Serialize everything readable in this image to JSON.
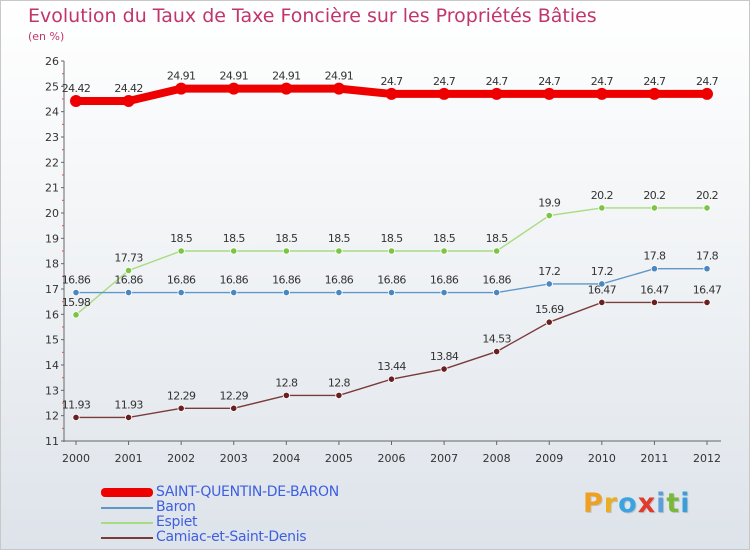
{
  "title": "Evolution du Taux de Taxe Foncière sur les Propriétés Bâties",
  "unit_label": "(en %)",
  "logo": {
    "text": "Proxiti",
    "letters": [
      {
        "ch": "P",
        "color": "#f0a020"
      },
      {
        "ch": "r",
        "color": "#e8b020"
      },
      {
        "ch": "o",
        "color": "#3ba3e0"
      },
      {
        "ch": "x",
        "color": "#e03a2a"
      },
      {
        "ch": "i",
        "color": "#5a9fd8"
      },
      {
        "ch": "t",
        "color": "#7ab83a"
      },
      {
        "ch": "i",
        "color": "#3a9fd8"
      }
    ]
  },
  "chart_data": {
    "type": "line",
    "x": [
      "2000",
      "2001",
      "2002",
      "2003",
      "2004",
      "2005",
      "2006",
      "2007",
      "2008",
      "2009",
      "2010",
      "2011",
      "2012"
    ],
    "ylim": [
      11,
      26
    ],
    "yticks": [
      "11",
      "12",
      "13",
      "14",
      "15",
      "16",
      "17",
      "18",
      "19",
      "20",
      "21",
      "22",
      "23",
      "24",
      "25",
      "26"
    ],
    "grid": false,
    "series": [
      {
        "name": "SAINT-QUENTIN-DE-BARON",
        "color": "#ee0000",
        "thick": true,
        "values": [
          24.42,
          24.42,
          24.91,
          24.91,
          24.91,
          24.91,
          24.7,
          24.7,
          24.7,
          24.7,
          24.7,
          24.7,
          24.7
        ],
        "labels": [
          "24.42",
          "24.42",
          "24.91",
          "24.91",
          "24.91",
          "24.91",
          "24.7",
          "24.7",
          "24.7",
          "24.7",
          "24.7",
          "24.7",
          "24.7"
        ]
      },
      {
        "name": "Baron",
        "color": "#5f98c8",
        "marker": "#4a86c0",
        "thick": false,
        "values": [
          16.86,
          16.86,
          16.86,
          16.86,
          16.86,
          16.86,
          16.86,
          16.86,
          16.86,
          17.2,
          17.2,
          17.8,
          17.8
        ],
        "labels": [
          "16.86",
          "16.86",
          "16.86",
          "16.86",
          "16.86",
          "16.86",
          "16.86",
          "16.86",
          "16.86",
          "17.2",
          "17.2",
          "17.8",
          "17.8"
        ]
      },
      {
        "name": "Espiet",
        "color": "#a8dc80",
        "marker": "#7cc444",
        "thick": false,
        "values": [
          15.98,
          17.73,
          18.5,
          18.5,
          18.5,
          18.5,
          18.5,
          18.5,
          18.5,
          19.9,
          20.2,
          20.2,
          20.2
        ],
        "labels": [
          "15.98",
          "17.73",
          "18.5",
          "18.5",
          "18.5",
          "18.5",
          "18.5",
          "18.5",
          "18.5",
          "19.9",
          "20.2",
          "20.2",
          "20.2"
        ]
      },
      {
        "name": "Camiac-et-Saint-Denis",
        "color": "#7a3b3b",
        "marker": "#6a2020",
        "thick": false,
        "values": [
          11.93,
          11.93,
          12.29,
          12.29,
          12.8,
          12.8,
          13.44,
          13.84,
          14.53,
          15.69,
          16.47,
          16.47,
          16.47
        ],
        "labels": [
          "11.93",
          "11.93",
          "12.29",
          "12.29",
          "12.8",
          "12.8",
          "13.44",
          "13.84",
          "14.53",
          "15.69",
          "16.47",
          "16.47",
          "16.47"
        ]
      }
    ]
  }
}
